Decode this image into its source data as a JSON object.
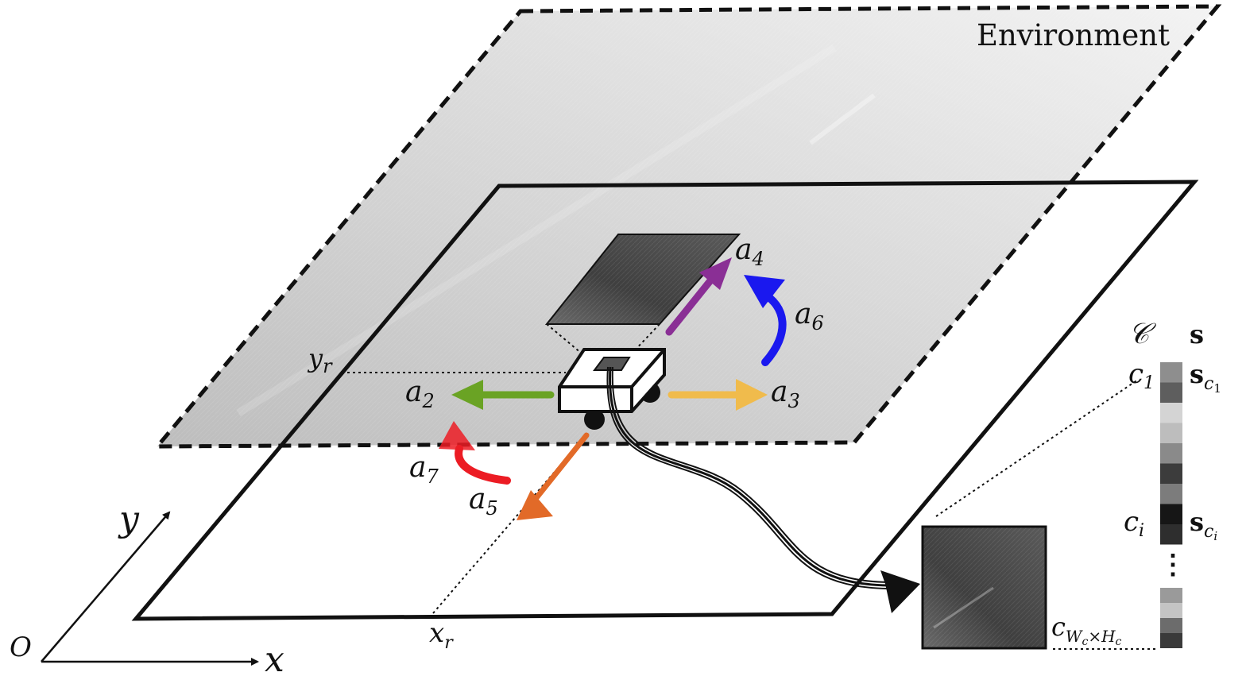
{
  "environment": {
    "label": "Environment"
  },
  "axes": {
    "origin": "O",
    "x": "x",
    "y": "y",
    "xr": {
      "main": "x",
      "sub": "r"
    },
    "yr": {
      "main": "y",
      "sub": "r"
    }
  },
  "actions": [
    {
      "main": "a",
      "sub": "2",
      "color": "#6aa324"
    },
    {
      "main": "a",
      "sub": "3",
      "color": "#f0bb4c"
    },
    {
      "main": "a",
      "sub": "4",
      "color": "#8a2f95"
    },
    {
      "main": "a",
      "sub": "5",
      "color": "#e26a28"
    },
    {
      "main": "a",
      "sub": "6",
      "color": "#1a18ef"
    },
    {
      "main": "a",
      "sub": "7",
      "color": "#ec1c24"
    }
  ],
  "codebook": {
    "symbol": "𝒞",
    "state_symbol": "s",
    "c1": {
      "main": "c",
      "sub": "1"
    },
    "ci": {
      "main": "c",
      "sub": "i"
    },
    "clast": {
      "main": "c",
      "sub": "W",
      "subsub": "c",
      "times": "×",
      "sub2": "H",
      "subsub2": "c"
    },
    "sc1": {
      "main": "s",
      "sub": "c",
      "subsub": "1"
    },
    "sci": {
      "main": "s",
      "sub": "c",
      "subsub": "i"
    },
    "ellipsis": "⋮",
    "cells_top": [
      "#8e8e8e",
      "#5e5e5e",
      "#d4d4d4",
      "#bdbdbd",
      "#8a8a8a",
      "#3c3c3c",
      "#7c7c7c",
      "#161616",
      "#2e2e2e"
    ],
    "cells_bottom": [
      "#9a9a9a",
      "#c4c4c4",
      "#6c6c6c",
      "#3a3a3a"
    ]
  }
}
